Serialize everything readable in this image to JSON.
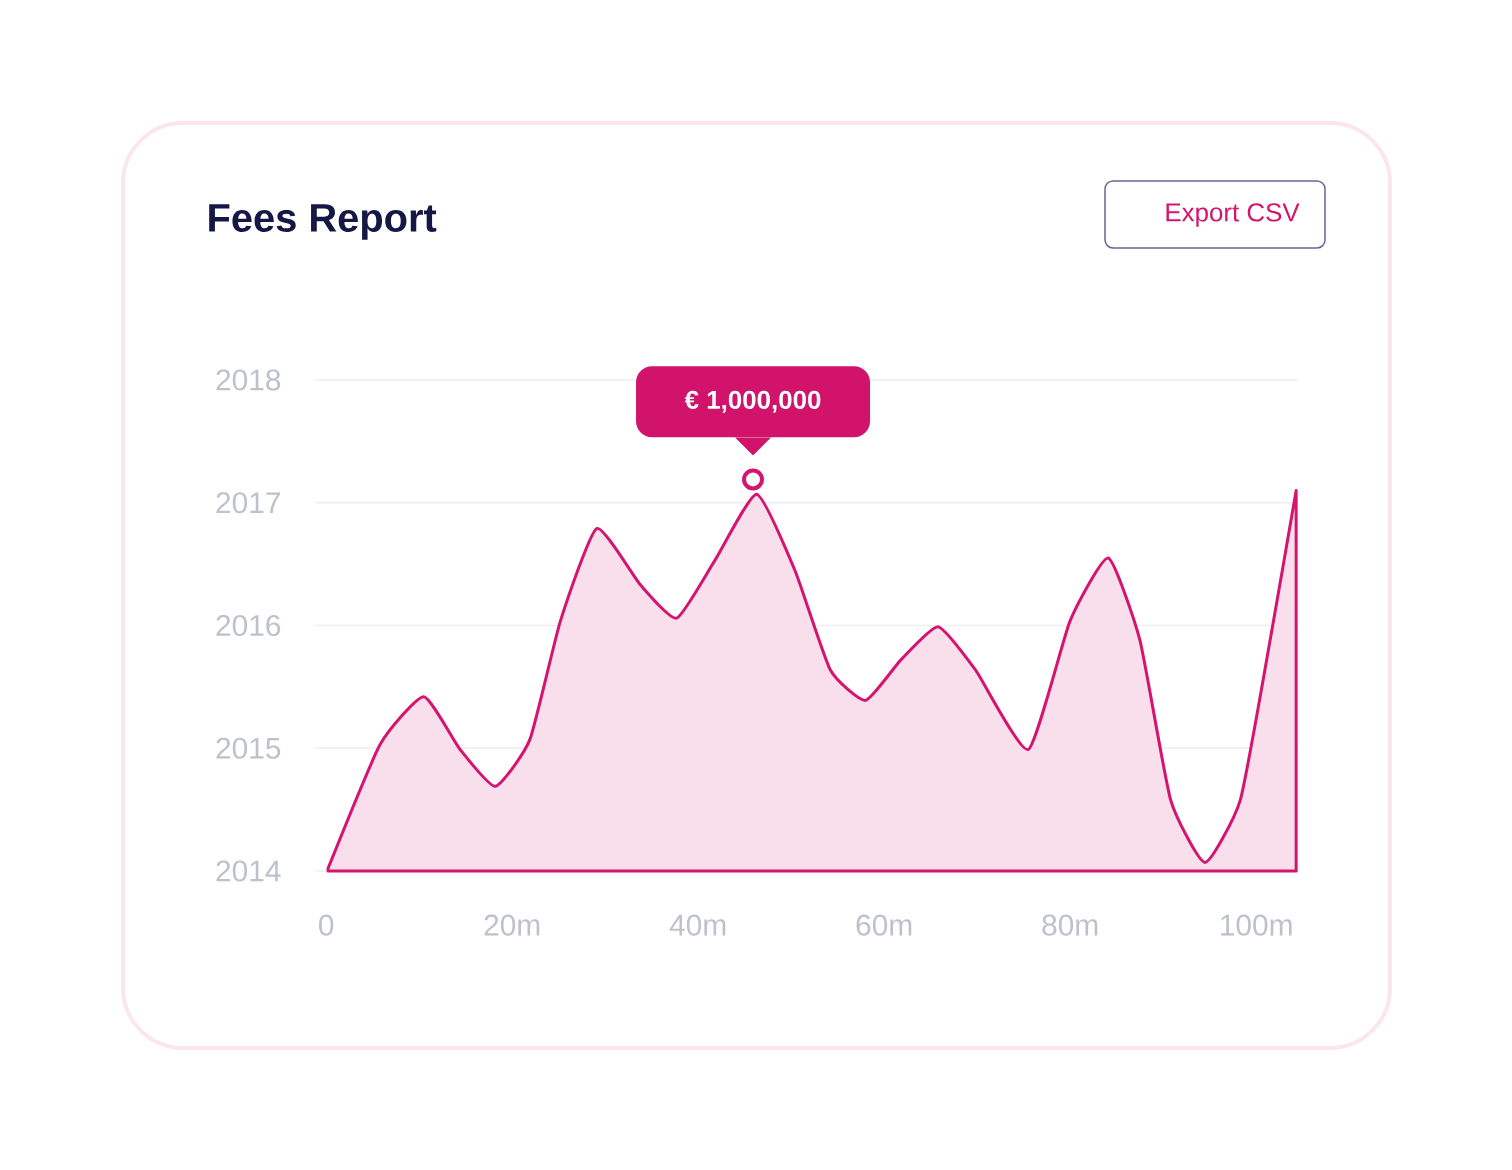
{
  "chart_data": {
    "type": "area",
    "title": "Fees Report",
    "x": [
      0.2,
      5.8,
      10.5,
      14.4,
      18.2,
      21.9,
      25.2,
      29.1,
      33.8,
      37.7,
      41.8,
      46.3,
      50.4,
      54.2,
      58.0,
      61.8,
      65.8,
      69.8,
      75.5,
      80.0,
      84.1,
      87.5,
      90.8,
      94.5,
      98.3,
      101.5,
      104.3
    ],
    "series": [
      {
        "color": "#d4146f",
        "values": [
          2014.02,
          2015.03,
          2015.42,
          2014.99,
          2014.69,
          2015.07,
          2016.04,
          2016.79,
          2016.33,
          2016.06,
          2016.53,
          2017.07,
          2016.45,
          2015.64,
          2015.39,
          2015.72,
          2015.99,
          2015.64,
          2014.99,
          2016.04,
          2016.55,
          2015.88,
          2014.58,
          2014.07,
          2014.58,
          2015.88,
          2017.1
        ]
      }
    ],
    "xlim": [
      -1.2,
      104.5
    ],
    "ylim": [
      2014,
      2018
    ],
    "xticks": [
      0,
      {
        "value": 20,
        "label": "20m"
      },
      {
        "value": 40,
        "label": "40m"
      },
      {
        "value": 60,
        "label": "60m"
      },
      {
        "value": 80,
        "label": "80m"
      },
      {
        "value": 100,
        "label": "100m"
      }
    ],
    "yticks": [
      2014,
      2015,
      2016,
      2017,
      2018
    ],
    "grid": "y",
    "annotations": [
      {
        "text": "€ 1,000,000",
        "x": 45.9,
        "y": 2017.19
      },
      "Export CSV"
    ]
  }
}
